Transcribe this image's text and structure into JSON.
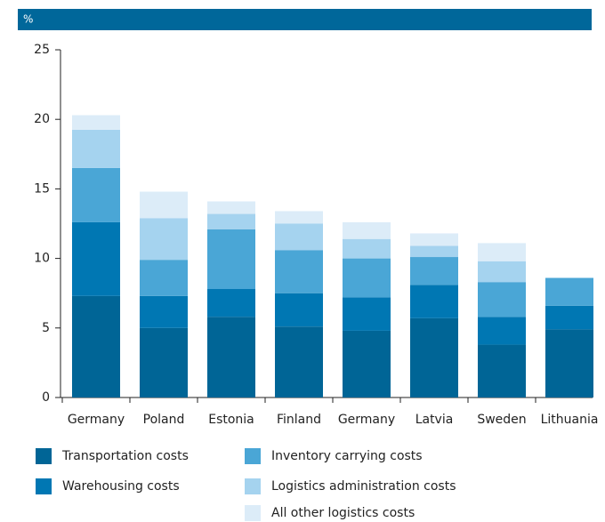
{
  "chart_data": {
    "type": "stacked_bar",
    "y_axis_label": "%",
    "categories": [
      "Germany",
      "Poland",
      "Estonia",
      "Finland",
      "Germany",
      "Latvia",
      "Sweden",
      "Lithuania"
    ],
    "series": [
      {
        "name": "Transportation costs",
        "color": "#006596",
        "values": [
          7.3,
          5.0,
          5.8,
          5.1,
          4.8,
          5.7,
          3.8,
          4.9
        ]
      },
      {
        "name": "Warehousing costs",
        "color": "#0077b3",
        "values": [
          5.3,
          2.3,
          2.0,
          2.4,
          2.4,
          2.4,
          2.0,
          1.7
        ]
      },
      {
        "name": "Inventory carrying costs",
        "color": "#4aa6d6",
        "values": [
          3.9,
          2.6,
          4.3,
          3.1,
          2.8,
          2.0,
          2.5,
          2.0
        ]
      },
      {
        "name": "Logistics administration costs",
        "color": "#a5d3ef",
        "values": [
          2.75,
          3.0,
          1.1,
          1.9,
          1.4,
          0.8,
          1.5,
          0
        ]
      },
      {
        "name": "All other logistics costs",
        "color": "#dcecf8",
        "values": [
          1.05,
          1.9,
          0.9,
          0.9,
          1.2,
          0.9,
          1.3,
          0
        ]
      }
    ],
    "ylim": [
      0,
      25
    ],
    "yticks": [
      0,
      5,
      10,
      15,
      20,
      25
    ],
    "header_color": "#00679a"
  }
}
